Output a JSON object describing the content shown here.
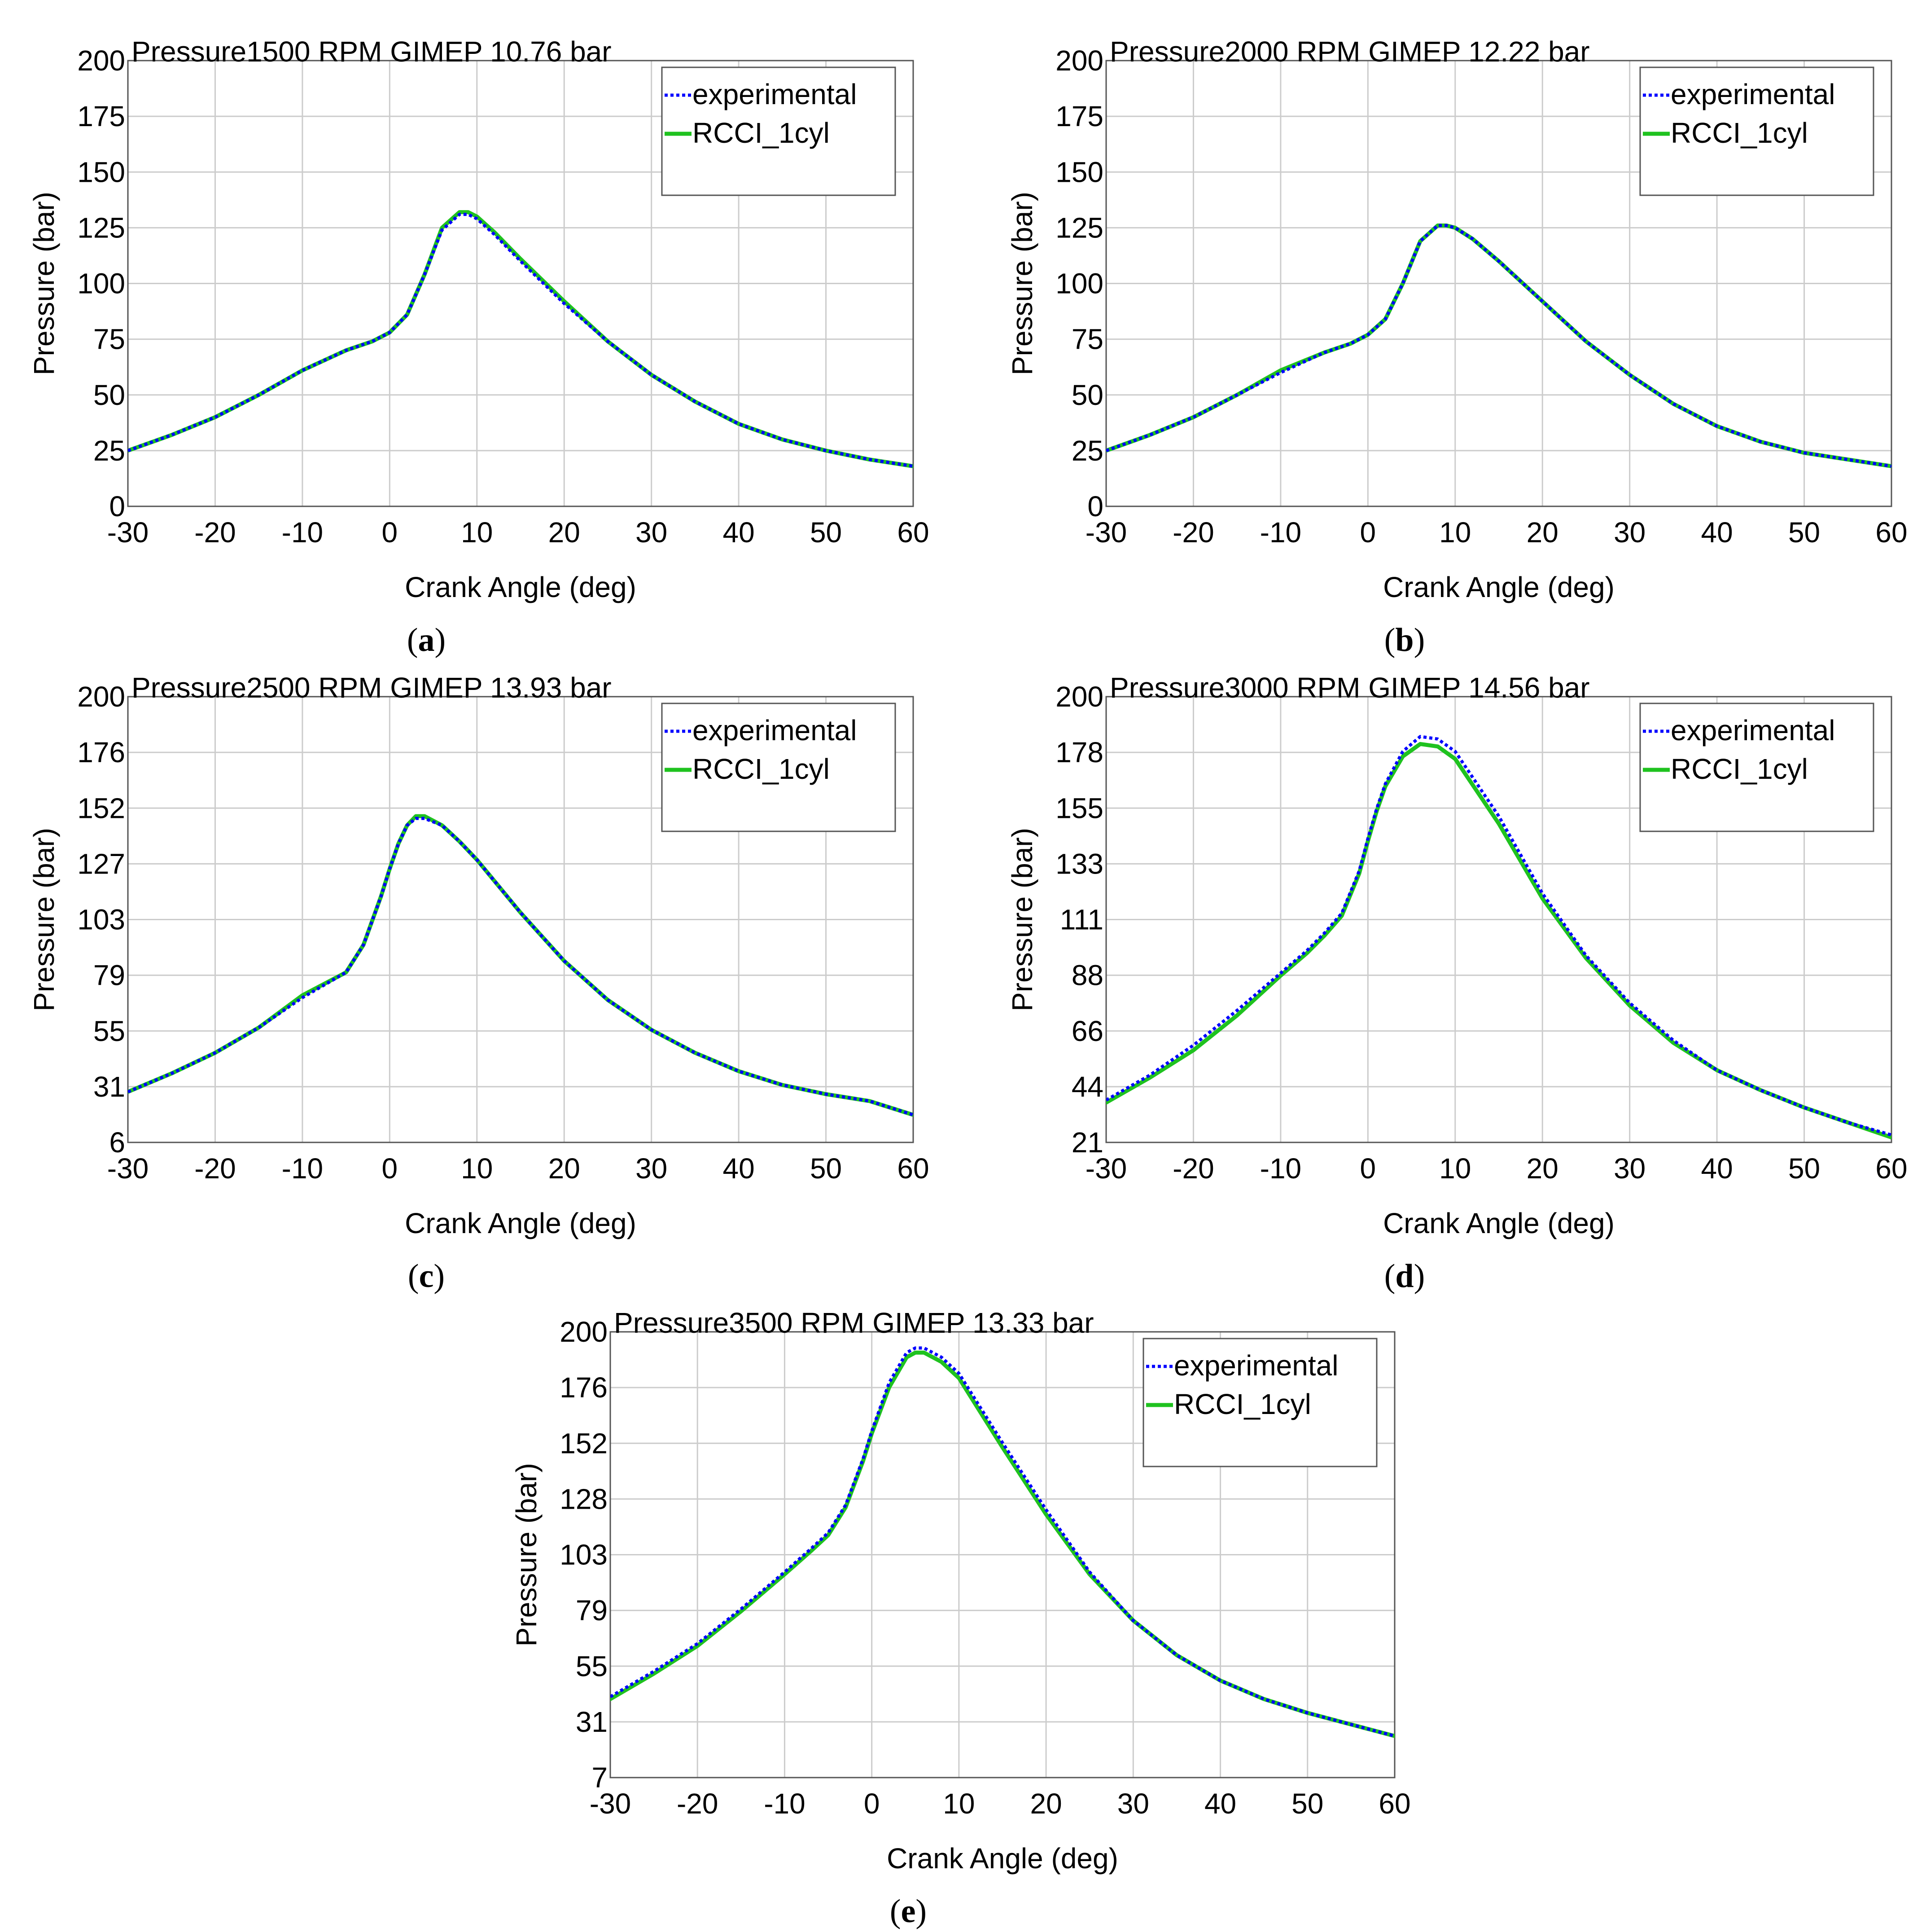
{
  "colors": {
    "experimental": "#0000ff",
    "rcci": "#1fc21f",
    "grid": "#cccccc",
    "axis": "#555555"
  },
  "chart_data": [
    {
      "type": "line",
      "panel_label": "a",
      "title": "Pressure1500 RPM GIMEP 10.76 bar",
      "xlabel": "Crank Angle (deg)",
      "ylabel": "Pressure (bar)",
      "xlim": [
        -30,
        60
      ],
      "ylim": [
        0,
        200
      ],
      "xticks": [
        "-30",
        "-20",
        "-10",
        "0",
        "10",
        "20",
        "30",
        "40",
        "50",
        "60"
      ],
      "yticks": [
        "0",
        "25",
        "50",
        "75",
        "100",
        "125",
        "150",
        "175",
        "200"
      ],
      "legend": [
        "experimental",
        "RCCI_1cyl"
      ],
      "legend_position": "top-right",
      "grid": true,
      "x": [
        -30,
        -25,
        -20,
        -15,
        -10,
        -5,
        -2,
        0,
        2,
        4,
        6,
        8,
        9,
        10,
        12,
        15,
        20,
        25,
        30,
        35,
        40,
        45,
        50,
        55,
        60
      ],
      "series": [
        {
          "name": "experimental",
          "style": "dotted",
          "values": [
            25,
            32,
            40,
            50,
            61,
            70,
            74,
            78,
            86,
            104,
            124,
            131,
            131,
            129,
            122,
            110,
            91,
            74,
            59,
            47,
            37,
            30,
            25,
            21,
            18
          ]
        },
        {
          "name": "RCCI_1cyl",
          "style": "solid",
          "values": [
            25,
            32,
            40,
            50,
            61,
            70,
            74,
            78,
            86,
            104,
            125,
            132,
            132,
            130,
            123,
            111,
            92,
            74,
            59,
            47,
            37,
            30,
            25,
            21,
            18
          ]
        }
      ]
    },
    {
      "type": "line",
      "panel_label": "b",
      "title": "Pressure2000 RPM GIMEP 12.22 bar",
      "xlabel": "Crank Angle (deg)",
      "ylabel": "Pressure (bar)",
      "xlim": [
        -30,
        60
      ],
      "ylim": [
        0,
        200
      ],
      "xticks": [
        "-30",
        "-20",
        "-10",
        "0",
        "10",
        "20",
        "30",
        "40",
        "50",
        "60"
      ],
      "yticks": [
        "0",
        "25",
        "50",
        "75",
        "100",
        "125",
        "150",
        "175",
        "200"
      ],
      "legend": [
        "experimental",
        "RCCI_1cyl"
      ],
      "legend_position": "top-right",
      "grid": true,
      "x": [
        -30,
        -25,
        -20,
        -15,
        -10,
        -5,
        -2,
        0,
        2,
        4,
        6,
        8,
        9,
        10,
        12,
        15,
        20,
        25,
        30,
        35,
        40,
        45,
        50,
        55,
        60
      ],
      "series": [
        {
          "name": "experimental",
          "style": "dotted",
          "values": [
            25,
            32,
            40,
            50,
            60,
            69,
            73,
            77,
            84,
            100,
            119,
            126,
            126,
            125,
            120,
            110,
            92,
            74,
            59,
            46,
            36,
            29,
            24,
            21,
            18
          ]
        },
        {
          "name": "RCCI_1cyl",
          "style": "solid",
          "values": [
            25,
            32,
            40,
            50,
            61,
            69,
            73,
            77,
            84,
            100,
            119,
            126,
            126,
            125,
            120,
            110,
            92,
            74,
            59,
            46,
            36,
            29,
            24,
            21,
            18
          ]
        }
      ]
    },
    {
      "type": "line",
      "panel_label": "c",
      "title": "Pressure2500 RPM GIMEP 13.93 bar",
      "xlabel": "Crank Angle (deg)",
      "ylabel": "Pressure (bar)",
      "xlim": [
        -30,
        60
      ],
      "ylim": [
        6,
        200
      ],
      "xticks": [
        "-30",
        "-20",
        "-10",
        "0",
        "10",
        "20",
        "30",
        "40",
        "50",
        "60"
      ],
      "yticks": [
        "6",
        "31",
        "55",
        "79",
        "103",
        "127",
        "152",
        "176",
        "200"
      ],
      "legend": [
        "experimental",
        "RCCI_1cyl"
      ],
      "legend_position": "top-right",
      "grid": true,
      "x": [
        -30,
        -25,
        -20,
        -15,
        -10,
        -5,
        -3,
        -1,
        0,
        1,
        2,
        3,
        4,
        6,
        8,
        10,
        15,
        20,
        25,
        30,
        35,
        40,
        45,
        50,
        55,
        60
      ],
      "series": [
        {
          "name": "experimental",
          "style": "dotted",
          "values": [
            28,
            36,
            45,
            56,
            69,
            80,
            92,
            113,
            125,
            136,
            144,
            147,
            147,
            144,
            137,
            129,
            106,
            85,
            68,
            55,
            45,
            37,
            31,
            27,
            24,
            18
          ]
        },
        {
          "name": "RCCI_1cyl",
          "style": "solid",
          "values": [
            28,
            36,
            45,
            56,
            70,
            80,
            92,
            113,
            125,
            136,
            144,
            148,
            148,
            144,
            137,
            129,
            106,
            85,
            68,
            55,
            45,
            37,
            31,
            27,
            24,
            18
          ]
        }
      ]
    },
    {
      "type": "line",
      "panel_label": "d",
      "title": "Pressure3000 RPM GIMEP 14.56 bar",
      "xlabel": "Crank Angle (deg)",
      "ylabel": "Pressure (bar)",
      "xlim": [
        -30,
        60
      ],
      "ylim": [
        21,
        200
      ],
      "xticks": [
        "-30",
        "-20",
        "-10",
        "0",
        "10",
        "20",
        "30",
        "40",
        "50",
        "60"
      ],
      "yticks": [
        "21",
        "44",
        "66",
        "88",
        "111",
        "133",
        "155",
        "178",
        "200"
      ],
      "legend": [
        "experimental",
        "RCCI_1cyl"
      ],
      "legend_position": "top-right",
      "grid": true,
      "x": [
        -30,
        -25,
        -20,
        -15,
        -10,
        -7,
        -5,
        -3,
        -1,
        0,
        1,
        2,
        4,
        6,
        8,
        10,
        15,
        20,
        25,
        30,
        35,
        40,
        45,
        50,
        55,
        60
      ],
      "series": [
        {
          "name": "experimental",
          "style": "dotted",
          "values": [
            38,
            48,
            60,
            74,
            89,
            98,
            105,
            113,
            130,
            143,
            155,
            165,
            178,
            184,
            183,
            178,
            152,
            121,
            96,
            77,
            62,
            50,
            42,
            35,
            29,
            24
          ]
        },
        {
          "name": "RCCI_1cyl",
          "style": "solid",
          "values": [
            37,
            47,
            58,
            72,
            88,
            97,
            104,
            112,
            129,
            142,
            154,
            164,
            176,
            181,
            180,
            175,
            149,
            119,
            95,
            76,
            61,
            50,
            42,
            35,
            29,
            23
          ]
        }
      ]
    },
    {
      "type": "line",
      "panel_label": "e",
      "title": "Pressure3500 RPM GIMEP 13.33 bar",
      "xlabel": "Crank Angle (deg)",
      "ylabel": "Pressure (bar)",
      "xlim": [
        -30,
        60
      ],
      "ylim": [
        7,
        200
      ],
      "xticks": [
        "-30",
        "-20",
        "-10",
        "0",
        "10",
        "20",
        "30",
        "40",
        "50",
        "60"
      ],
      "yticks": [
        "7",
        "31",
        "55",
        "79",
        "103",
        "128",
        "152",
        "176",
        "200"
      ],
      "legend": [
        "experimental",
        "RCCI_1cyl"
      ],
      "legend_position": "top-right",
      "grid": true,
      "x": [
        -30,
        -25,
        -20,
        -15,
        -10,
        -7,
        -5,
        -3,
        -1,
        0,
        2,
        4,
        5,
        6,
        8,
        10,
        15,
        20,
        25,
        30,
        35,
        40,
        45,
        50,
        55,
        60
      ],
      "series": [
        {
          "name": "experimental",
          "style": "dotted",
          "values": [
            42,
            53,
            65,
            80,
            96,
            106,
            113,
            125,
            145,
            157,
            178,
            191,
            193,
            193,
            189,
            182,
            152,
            123,
            96,
            75,
            60,
            49,
            41,
            35,
            30,
            25
          ]
        },
        {
          "name": "RCCI_1cyl",
          "style": "solid",
          "values": [
            41,
            52,
            64,
            79,
            95,
            105,
            112,
            124,
            144,
            156,
            176,
            189,
            191,
            191,
            187,
            180,
            150,
            121,
            95,
            75,
            60,
            49,
            41,
            35,
            30,
            25
          ]
        }
      ]
    }
  ]
}
